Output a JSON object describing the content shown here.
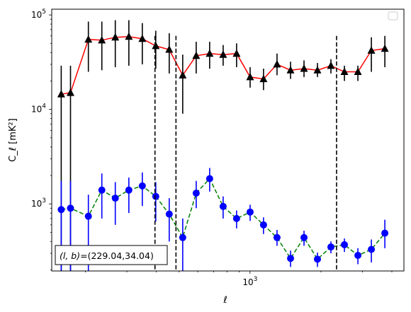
{
  "chart_data": {
    "type": "scatter",
    "xscale": "log",
    "yscale": "log",
    "xlim": [
      144,
      4500
    ],
    "ylim": [
      195,
      115000
    ],
    "xlabel": "ℓ",
    "ylabel": "C_ℓ  [mK²]",
    "x_ticks": [
      {
        "value": 1000,
        "base": "10",
        "exp": "3"
      }
    ],
    "y_ticks": [
      {
        "value": 1000,
        "base": "10",
        "exp": "3"
      },
      {
        "value": 10000,
        "base": "10",
        "exp": "4"
      },
      {
        "value": 100000,
        "base": "10",
        "exp": "5"
      }
    ],
    "legend": {
      "position": "top-right",
      "entries": []
    },
    "annotation": {
      "text_prefix": "(l, b)=",
      "value": "(229.04,34.04)",
      "position": "bottom-left"
    },
    "vlines": [
      395,
      485,
      2330
    ],
    "vline_range": [
      195,
      60000
    ],
    "series": [
      {
        "marker": "triangle",
        "color": "#000000",
        "line_color": "#ff0000",
        "line_style": "solid",
        "points": [
          {
            "x": 158,
            "y": 14500,
            "ylo": 195,
            "yhi": 29000
          },
          {
            "x": 173,
            "y": 15000,
            "ylo": 195,
            "yhi": 29000
          },
          {
            "x": 206,
            "y": 55000,
            "ylo": 25000,
            "yhi": 85000
          },
          {
            "x": 235,
            "y": 54000,
            "ylo": 26000,
            "yhi": 85000
          },
          {
            "x": 268,
            "y": 58000,
            "ylo": 28000,
            "yhi": 88000
          },
          {
            "x": 306,
            "y": 59000,
            "ylo": 29000,
            "yhi": 88000
          },
          {
            "x": 349,
            "y": 56000,
            "ylo": 30000,
            "yhi": 82000
          },
          {
            "x": 398,
            "y": 47000,
            "ylo": 27000,
            "yhi": 68000
          },
          {
            "x": 454,
            "y": 43000,
            "ylo": 24000,
            "yhi": 64000
          },
          {
            "x": 518,
            "y": 23000,
            "ylo": 9000,
            "yhi": 38000
          },
          {
            "x": 591,
            "y": 37000,
            "ylo": 24000,
            "yhi": 52000
          },
          {
            "x": 674,
            "y": 39000,
            "ylo": 27000,
            "yhi": 52000
          },
          {
            "x": 769,
            "y": 38000,
            "ylo": 29000,
            "yhi": 48000
          },
          {
            "x": 877,
            "y": 39000,
            "ylo": 28000,
            "yhi": 50000
          },
          {
            "x": 1001,
            "y": 22000,
            "ylo": 17000,
            "yhi": 28000
          },
          {
            "x": 1141,
            "y": 21000,
            "ylo": 16000,
            "yhi": 27000
          },
          {
            "x": 1302,
            "y": 30000,
            "ylo": 23000,
            "yhi": 39000
          },
          {
            "x": 1486,
            "y": 26000,
            "ylo": 21000,
            "yhi": 32000
          },
          {
            "x": 1695,
            "y": 27000,
            "ylo": 22000,
            "yhi": 33000
          },
          {
            "x": 1933,
            "y": 26000,
            "ylo": 22000,
            "yhi": 31000
          },
          {
            "x": 2205,
            "y": 29000,
            "ylo": 24000,
            "yhi": 34000
          },
          {
            "x": 2516,
            "y": 25000,
            "ylo": 20000,
            "yhi": 29000
          },
          {
            "x": 2870,
            "y": 25000,
            "ylo": 20000,
            "yhi": 29000
          },
          {
            "x": 3274,
            "y": 42000,
            "ylo": 25000,
            "yhi": 58000
          },
          {
            "x": 3735,
            "y": 44000,
            "ylo": 28000,
            "yhi": 60000
          }
        ]
      },
      {
        "marker": "circle",
        "color": "#0000ff",
        "line_color": "#008000",
        "line_style": "dashed",
        "points": [
          {
            "x": 158,
            "y": 870,
            "ylo": 195,
            "yhi": 1750
          },
          {
            "x": 173,
            "y": 900,
            "ylo": 195,
            "yhi": 1750
          },
          {
            "x": 206,
            "y": 740,
            "ylo": 195,
            "yhi": 1250
          },
          {
            "x": 235,
            "y": 1400,
            "ylo": 700,
            "yhi": 2100
          },
          {
            "x": 268,
            "y": 1150,
            "ylo": 600,
            "yhi": 1700
          },
          {
            "x": 306,
            "y": 1400,
            "ylo": 800,
            "yhi": 1900
          },
          {
            "x": 349,
            "y": 1550,
            "ylo": 950,
            "yhi": 2150
          },
          {
            "x": 398,
            "y": 1200,
            "ylo": 650,
            "yhi": 1700
          },
          {
            "x": 454,
            "y": 780,
            "ylo": 400,
            "yhi": 1150
          },
          {
            "x": 518,
            "y": 440,
            "ylo": 195,
            "yhi": 700
          },
          {
            "x": 591,
            "y": 1300,
            "ylo": 900,
            "yhi": 1750
          },
          {
            "x": 674,
            "y": 1850,
            "ylo": 1350,
            "yhi": 2400
          },
          {
            "x": 769,
            "y": 940,
            "ylo": 700,
            "yhi": 1200
          },
          {
            "x": 877,
            "y": 700,
            "ylo": 550,
            "yhi": 850
          },
          {
            "x": 1001,
            "y": 820,
            "ylo": 660,
            "yhi": 980
          },
          {
            "x": 1141,
            "y": 600,
            "ylo": 480,
            "yhi": 720
          },
          {
            "x": 1302,
            "y": 440,
            "ylo": 360,
            "yhi": 530
          },
          {
            "x": 1486,
            "y": 265,
            "ylo": 215,
            "yhi": 320
          },
          {
            "x": 1695,
            "y": 440,
            "ylo": 360,
            "yhi": 520
          },
          {
            "x": 1933,
            "y": 260,
            "ylo": 215,
            "yhi": 305
          },
          {
            "x": 2205,
            "y": 350,
            "ylo": 300,
            "yhi": 400
          },
          {
            "x": 2516,
            "y": 370,
            "ylo": 310,
            "yhi": 430
          },
          {
            "x": 2870,
            "y": 285,
            "ylo": 230,
            "yhi": 340
          },
          {
            "x": 3274,
            "y": 330,
            "ylo": 240,
            "yhi": 420
          },
          {
            "x": 3735,
            "y": 490,
            "ylo": 340,
            "yhi": 680
          }
        ]
      }
    ]
  }
}
